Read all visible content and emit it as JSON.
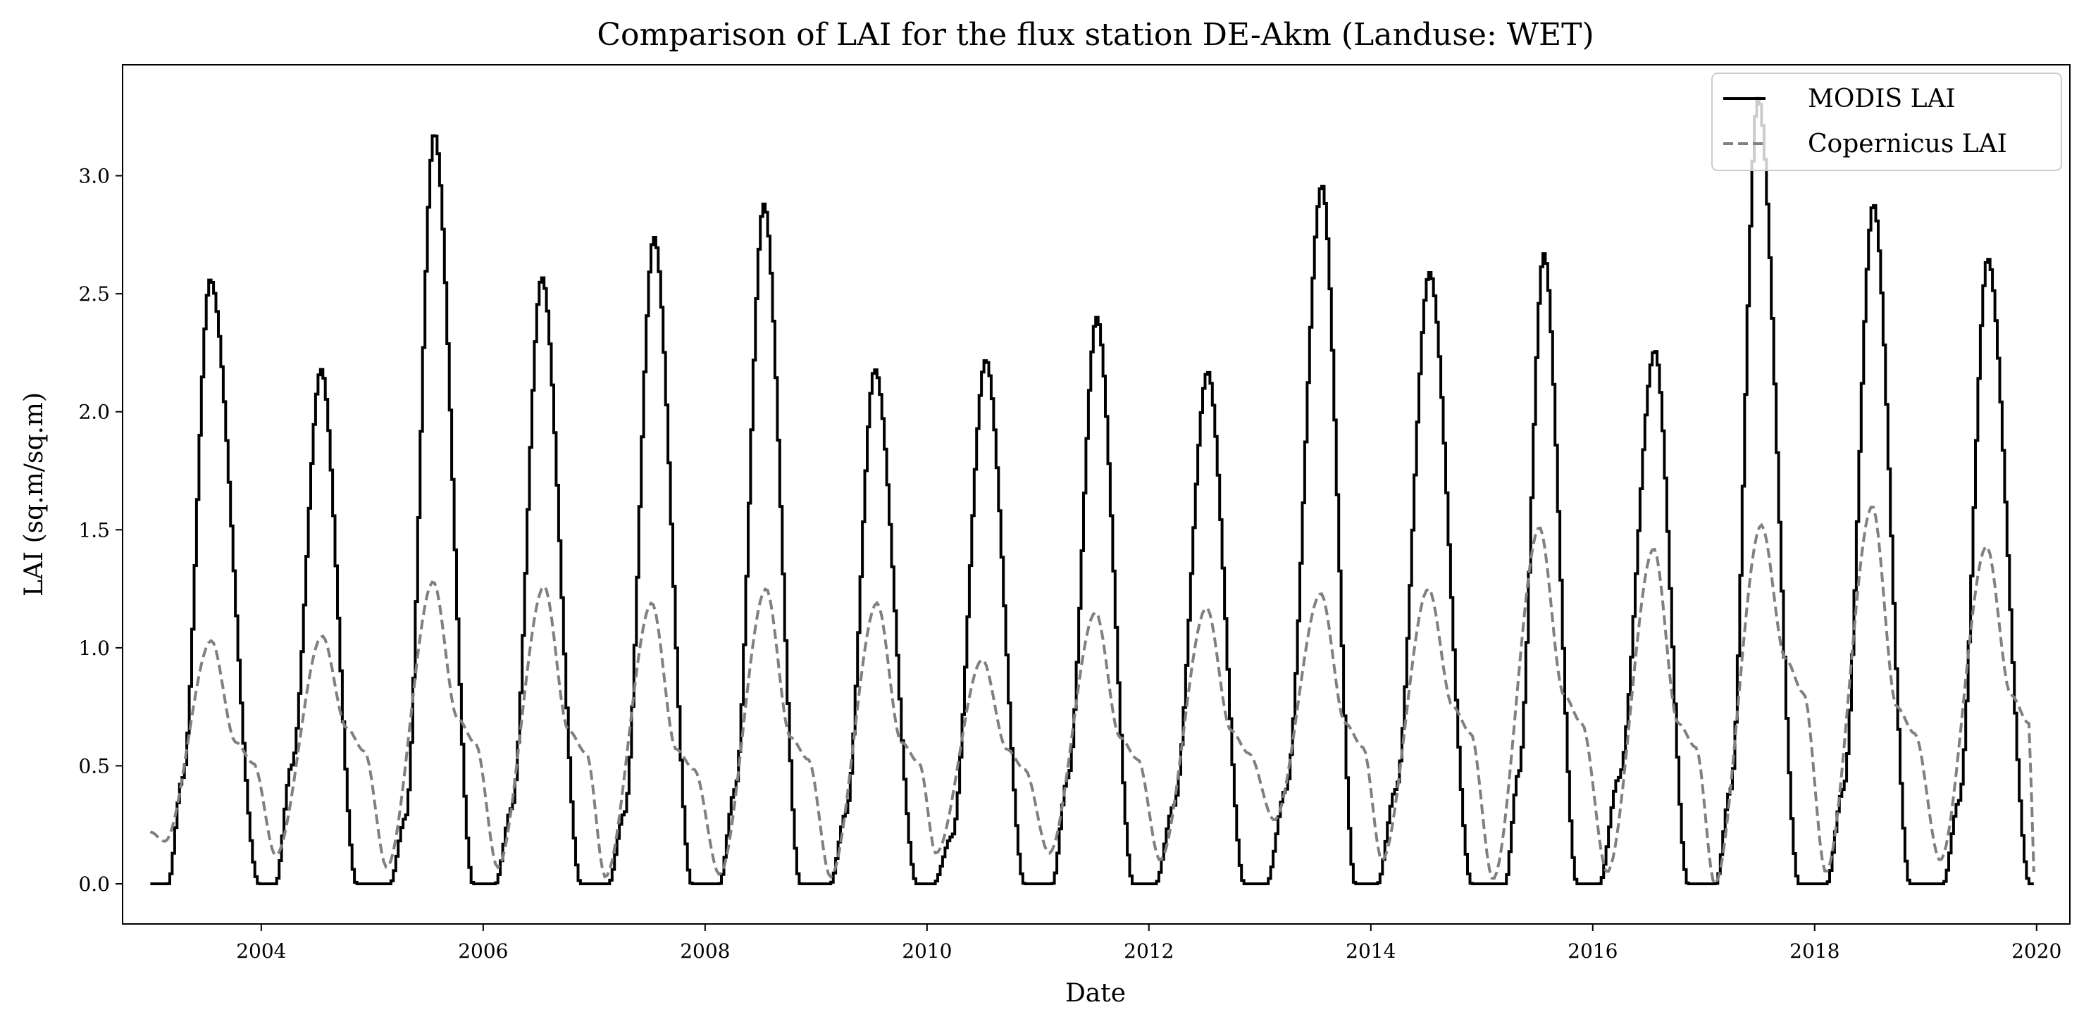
{
  "chart_data": {
    "type": "line",
    "title": "Comparison of LAI for the flux station DE-Akm (Landuse: WET)",
    "xlabel": "Date",
    "ylabel": "LAI (sq.m/sq.m)",
    "xlim": [
      2002.75,
      2020.3
    ],
    "ylim": [
      -0.17,
      3.47
    ],
    "xticks": [
      2004,
      2006,
      2008,
      2010,
      2012,
      2014,
      2016,
      2018,
      2020
    ],
    "yticks": [
      "0.0",
      "0.5",
      "1.0",
      "1.5",
      "2.0",
      "2.5",
      "3.0"
    ],
    "grid": false,
    "legend_position": "top-right",
    "series": [
      {
        "name": "MODIS LAI",
        "style": "solid",
        "color": "#000000",
        "peak_x": [
          2003.53,
          2004.53,
          2005.55,
          2006.52,
          2007.53,
          2008.52,
          2009.52,
          2010.52,
          2011.52,
          2012.52,
          2013.55,
          2014.52,
          2015.55,
          2016.55,
          2017.48,
          2018.52,
          2019.55
        ],
        "peak_y": [
          2.56,
          2.18,
          3.18,
          2.57,
          2.74,
          2.88,
          2.18,
          2.22,
          2.4,
          2.17,
          2.96,
          2.59,
          2.67,
          2.26,
          3.33,
          2.88,
          2.65
        ],
        "spring_level": [
          0.45,
          0.5,
          0.28,
          0.32,
          0.3,
          0.4,
          0.3,
          0.2,
          0.45,
          0.33,
          0.4,
          0.4,
          0.47,
          0.45,
          0.4,
          0.4,
          0.35
        ],
        "zero_start": [
          2003.0,
          2003.97,
          2004.85,
          2005.9,
          2006.87,
          2007.87,
          2008.85,
          2009.9,
          2010.87,
          2011.85,
          2012.85,
          2013.85,
          2014.9,
          2015.85,
          2016.85,
          2017.85,
          2018.85
        ],
        "zero_end": [
          2003.15,
          2004.12,
          2005.15,
          2006.1,
          2007.12,
          2008.12,
          2009.12,
          2010.05,
          2011.12,
          2012.05,
          2013.05,
          2014.05,
          2015.2,
          2016.05,
          2017.1,
          2018.1,
          2019.15
        ],
        "end_x": 2019.98
      },
      {
        "name": "Copernicus LAI",
        "style": "dashed",
        "color": "#808080",
        "peak_x": [
          2003.55,
          2004.55,
          2005.55,
          2006.55,
          2007.52,
          2008.55,
          2009.55,
          2010.5,
          2011.52,
          2012.52,
          2013.55,
          2014.52,
          2015.52,
          2016.55,
          2017.52,
          2018.52,
          2019.55
        ],
        "peak_y": [
          1.03,
          1.05,
          1.28,
          1.26,
          1.19,
          1.25,
          1.19,
          0.95,
          1.15,
          1.17,
          1.23,
          1.25,
          1.51,
          1.42,
          1.52,
          1.6,
          1.43
        ],
        "shoulder_y": [
          0.6,
          0.66,
          0.7,
          0.65,
          0.57,
          0.62,
          0.6,
          0.57,
          0.62,
          0.65,
          0.68,
          0.75,
          0.8,
          0.68,
          0.95,
          0.75,
          0.8
        ],
        "trough_y": [
          0.18,
          0.12,
          0.07,
          0.07,
          0.03,
          0.04,
          0.03,
          0.13,
          0.13,
          0.1,
          0.27,
          0.1,
          0.02,
          0.05,
          0.0,
          0.05,
          0.1
        ],
        "start_y": 0.22,
        "end_y": 0.03,
        "end_x": 2019.98
      }
    ]
  }
}
